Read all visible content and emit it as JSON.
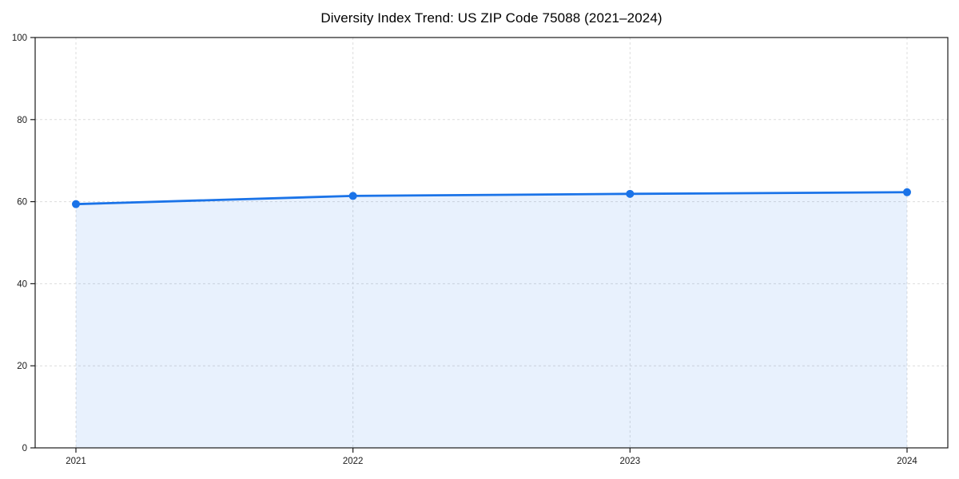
{
  "chart_data": {
    "type": "line",
    "title": "Diversity Index Trend: US ZIP Code 75088 (2021–2024)",
    "categories": [
      "2021",
      "2022",
      "2023",
      "2024"
    ],
    "values": [
      59.4,
      61.4,
      61.9,
      62.3
    ],
    "xlabel": "",
    "ylabel": "",
    "ylim": [
      0,
      100
    ],
    "yticks": [
      0,
      20,
      40,
      60,
      80,
      100
    ],
    "grid": true,
    "grid_style": "dashed",
    "area_fill": true,
    "markers": true,
    "legend_position": "none",
    "colors": {
      "line": "#1a73e8",
      "marker": "#1a73e8",
      "fill": "#1a73e8",
      "fill_opacity": 0.1,
      "grid": "#dcdcdc",
      "axis": "#1a1a1a",
      "tick_label": "#1a1a1a",
      "background": "#ffffff"
    }
  }
}
